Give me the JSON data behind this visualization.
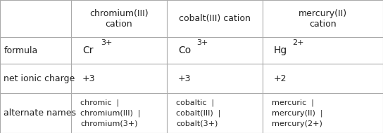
{
  "col_headers": [
    "chromium(III)\ncation",
    "cobalt(III) cation",
    "mercury(II)\ncation"
  ],
  "row_headers": [
    "formula",
    "net ionic charge",
    "alternate names"
  ],
  "charges": [
    "+3",
    "+3",
    "+2"
  ],
  "alt_names": [
    "chromic  |\nchromium(III)  |\nchromium(3+)",
    "cobaltic  |\ncobalt(III)  |\ncobalt(3+)",
    "mercuric  |\nmercury(II)  |\nmercury(2+)"
  ],
  "formula_bases": [
    "Cr",
    "Co",
    "Hg"
  ],
  "formula_sups": [
    "3+",
    "3+",
    "2+"
  ],
  "col_bounds": [
    0.0,
    0.185,
    0.435,
    0.685,
    1.0
  ],
  "row_bounds": [
    1.0,
    0.72,
    0.52,
    0.3,
    0.0
  ],
  "bg_color": "#ffffff",
  "line_color": "#aaaaaa",
  "text_color": "#222222",
  "font_size": 9,
  "line_width": 0.8
}
